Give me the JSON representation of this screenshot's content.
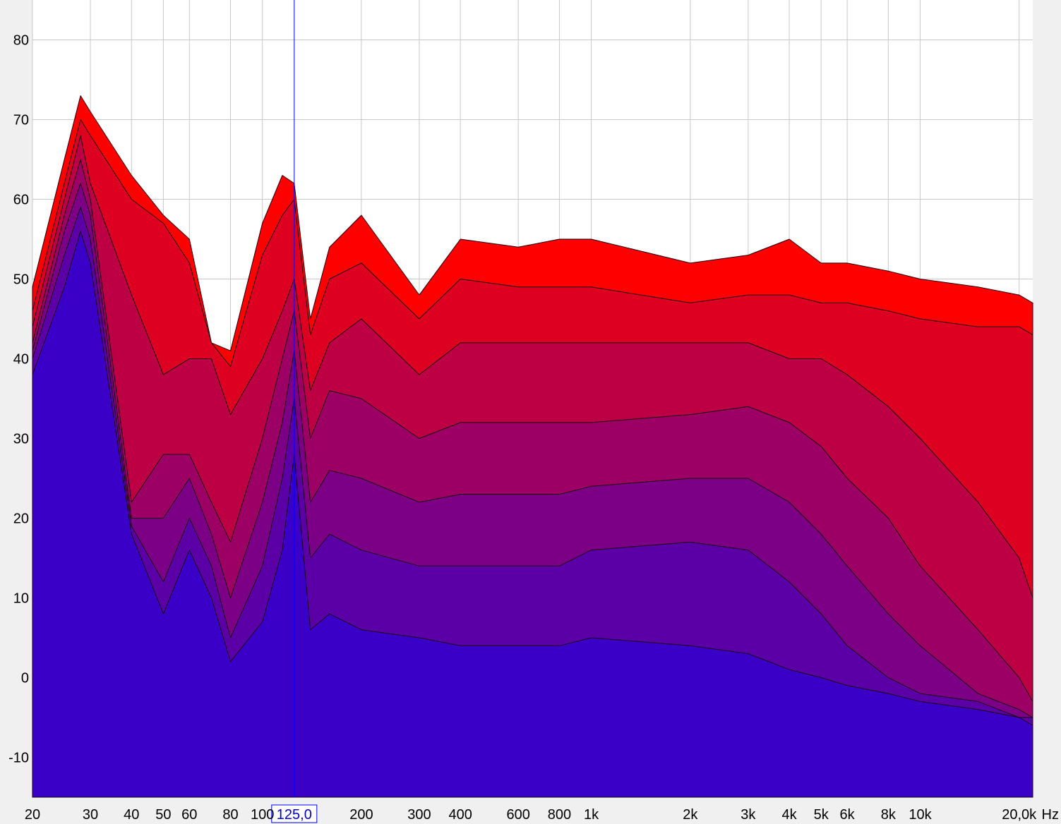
{
  "chart_data": {
    "type": "area",
    "title": "",
    "xlabel": "",
    "ylabel": "",
    "x_scale": "log",
    "xlim": [
      20,
      22000
    ],
    "ylim": [
      -15,
      85
    ],
    "x_unit": "Hz",
    "grid": true,
    "y_ticks": [
      80,
      70,
      60,
      50,
      40,
      30,
      20,
      10,
      0,
      -10
    ],
    "x_ticks": [
      {
        "value": 20,
        "label": "20"
      },
      {
        "value": 30,
        "label": "30"
      },
      {
        "value": 40,
        "label": "40"
      },
      {
        "value": 50,
        "label": "50"
      },
      {
        "value": 60,
        "label": "60"
      },
      {
        "value": 80,
        "label": "80"
      },
      {
        "value": 100,
        "label": "100"
      },
      {
        "value": 200,
        "label": "200"
      },
      {
        "value": 300,
        "label": "300"
      },
      {
        "value": 400,
        "label": "400"
      },
      {
        "value": 600,
        "label": "600"
      },
      {
        "value": 800,
        "label": "800"
      },
      {
        "value": 1000,
        "label": "1k"
      },
      {
        "value": 2000,
        "label": "2k"
      },
      {
        "value": 3000,
        "label": "3k"
      },
      {
        "value": 4000,
        "label": "4k"
      },
      {
        "value": 5000,
        "label": "5k"
      },
      {
        "value": 6000,
        "label": "6k"
      },
      {
        "value": 8000,
        "label": "8k"
      },
      {
        "value": 10000,
        "label": "10k"
      },
      {
        "value": 20000,
        "label": "20,0k"
      }
    ],
    "x_unit_label": "Hz",
    "cursor": {
      "value": 125,
      "label": "125,0"
    },
    "colors": {
      "front": "#ff0000",
      "back": "#3a00c8",
      "grid": "#c8c8c8",
      "cursor": "#0000ff",
      "background": "#ffffff"
    },
    "x": [
      20,
      25,
      28,
      30,
      40,
      50,
      60,
      70,
      80,
      100,
      115,
      125,
      140,
      160,
      200,
      300,
      400,
      600,
      800,
      1000,
      2000,
      3000,
      4000,
      5000,
      6000,
      8000,
      10000,
      15000,
      20000,
      22000
    ],
    "series": [
      {
        "values": [
          49,
          65,
          73,
          71,
          63,
          58,
          55,
          42,
          41,
          57,
          63,
          62,
          45,
          54,
          58,
          48,
          55,
          54,
          55,
          55,
          52,
          53,
          55,
          52,
          52,
          51,
          50,
          49,
          48,
          47
        ]
      },
      {
        "values": [
          46,
          62,
          70,
          68,
          60,
          57,
          52,
          42,
          39,
          53,
          58,
          60,
          43,
          50,
          52,
          45,
          50,
          49,
          49,
          49,
          47,
          48,
          48,
          47,
          47,
          46,
          45,
          44,
          44,
          43
        ]
      },
      {
        "values": [
          44,
          60,
          68,
          62,
          48,
          38,
          40,
          40,
          33,
          40,
          46,
          50,
          36,
          42,
          45,
          38,
          42,
          42,
          42,
          42,
          42,
          42,
          40,
          40,
          38,
          34,
          30,
          22,
          15,
          10
        ]
      },
      {
        "values": [
          42,
          58,
          65,
          60,
          22,
          28,
          28,
          22,
          17,
          30,
          40,
          46,
          30,
          36,
          35,
          30,
          32,
          32,
          32,
          32,
          33,
          34,
          32,
          29,
          25,
          20,
          14,
          6,
          0,
          -3
        ]
      },
      {
        "values": [
          41,
          56,
          62,
          58,
          20,
          20,
          25,
          18,
          10,
          22,
          32,
          41,
          22,
          26,
          25,
          22,
          23,
          23,
          23,
          24,
          25,
          25,
          22,
          18,
          14,
          8,
          4,
          -2,
          -4,
          -5
        ]
      },
      {
        "values": [
          40,
          53,
          59,
          55,
          19,
          12,
          20,
          14,
          5,
          14,
          25,
          35,
          15,
          18,
          16,
          14,
          14,
          14,
          14,
          16,
          17,
          16,
          12,
          8,
          4,
          0,
          -2,
          -3,
          -5,
          -5
        ]
      },
      {
        "values": [
          38,
          49,
          56,
          52,
          18,
          8,
          16,
          10,
          2,
          7,
          16,
          28,
          6,
          8,
          6,
          5,
          4,
          4,
          4,
          5,
          4,
          3,
          1,
          0,
          -1,
          -2,
          -3,
          -4,
          -5,
          -6
        ]
      }
    ]
  }
}
